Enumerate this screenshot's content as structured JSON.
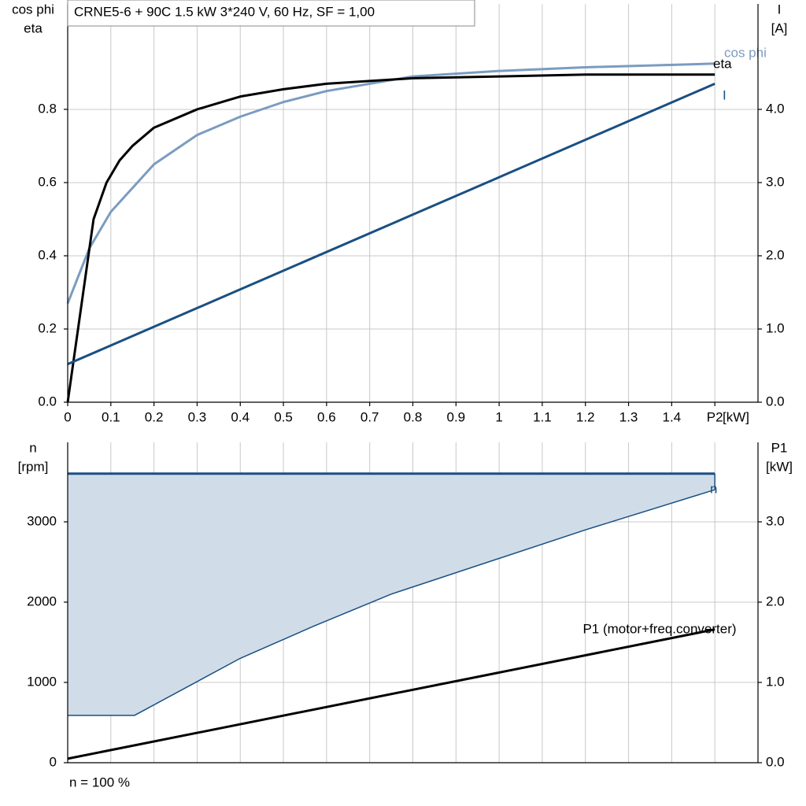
{
  "chart_data": [
    {
      "type": "line",
      "title": "CRNE5-6 + 90C   1.5 kW   3*240 V, 60 Hz, SF = 1,00",
      "ylabel": [
        "cos phi",
        "eta"
      ],
      "y2label": [
        "I",
        "[A]"
      ],
      "xlabel": "[kW]",
      "xlim": [
        0,
        1.6
      ],
      "xticks": [
        0,
        0.1,
        0.2,
        0.3,
        0.4,
        0.5,
        0.6,
        0.7,
        0.8,
        0.9,
        1.0,
        1.1,
        1.2,
        1.3,
        1.4,
        {
          "value": 1.5,
          "label": "P2"
        }
      ],
      "ylim": [
        0,
        1.088
      ],
      "yticks": [
        {
          "value": 0,
          "label": "0.0"
        },
        0.2,
        0.4,
        0.6,
        0.8
      ],
      "y2lim": [
        0,
        5.44
      ],
      "y2ticks": [
        {
          "value": 0,
          "label": "0.0"
        },
        {
          "value": 1,
          "label": "1.0"
        },
        {
          "value": 2,
          "label": "2.0"
        },
        {
          "value": 3,
          "label": "3.0"
        },
        {
          "value": 4,
          "label": "4.0"
        }
      ],
      "grid": true,
      "series": [
        {
          "name": "cos phi",
          "color": "#7b9cc0",
          "x": [
            0,
            0.05,
            0.1,
            0.2,
            0.3,
            0.4,
            0.5,
            0.6,
            0.8,
            1.0,
            1.2,
            1.5
          ],
          "values": [
            0.27,
            0.42,
            0.52,
            0.65,
            0.73,
            0.78,
            0.82,
            0.85,
            0.89,
            0.905,
            0.915,
            0.925
          ]
        },
        {
          "name": "eta",
          "color": "#000000",
          "x": [
            0,
            0.06,
            0.09,
            0.12,
            0.15,
            0.2,
            0.3,
            0.4,
            0.5,
            0.6,
            0.8,
            1.0,
            1.2,
            1.5
          ],
          "values": [
            0,
            0.5,
            0.6,
            0.66,
            0.7,
            0.75,
            0.8,
            0.835,
            0.855,
            0.87,
            0.885,
            0.89,
            0.895,
            0.895
          ]
        },
        {
          "name": "I",
          "color": "#1a4f82",
          "axis": "y2",
          "x": [
            0,
            1.5
          ],
          "values": [
            0.52,
            4.35
          ]
        }
      ]
    },
    {
      "type": "line",
      "ylabel": [
        "n",
        "[rpm]"
      ],
      "y2label": [
        "P1",
        "[kW]"
      ],
      "xlim": [
        0,
        1.6
      ],
      "xticks": [
        0,
        0.1,
        0.2,
        0.3,
        0.4,
        0.5,
        0.6,
        0.7,
        0.8,
        0.9,
        1.0,
        1.1,
        1.2,
        1.3,
        1.4,
        1.5
      ],
      "xtick_labels": false,
      "ylim": [
        0,
        3990
      ],
      "yticks": [
        0,
        1000,
        2000,
        3000
      ],
      "y2lim": [
        0,
        3.99
      ],
      "y2ticks": [
        {
          "value": 0,
          "label": "0.0"
        },
        {
          "value": 1,
          "label": "1.0"
        },
        {
          "value": 2,
          "label": "2.0"
        },
        {
          "value": 3,
          "label": "3.0"
        }
      ],
      "grid": true,
      "series": [
        {
          "name": "n",
          "color": "#1a4f82",
          "fill": "#d0dce8",
          "x": [
            0,
            1.5
          ],
          "values": [
            3600,
            3600
          ],
          "band": {
            "x": [
              0,
              0.155,
              0.4,
              0.57,
              0.75,
              1.2,
              1.5
            ],
            "values": [
              590,
              590,
              1300,
              1700,
              2100,
              2900,
              3400
            ]
          }
        },
        {
          "name": "P1 (motor+freq.converter)",
          "color": "#000000",
          "axis": "y2",
          "x": [
            0,
            1.5
          ],
          "values": [
            0.05,
            1.66
          ]
        }
      ],
      "footnote": "n = 100 %"
    }
  ]
}
